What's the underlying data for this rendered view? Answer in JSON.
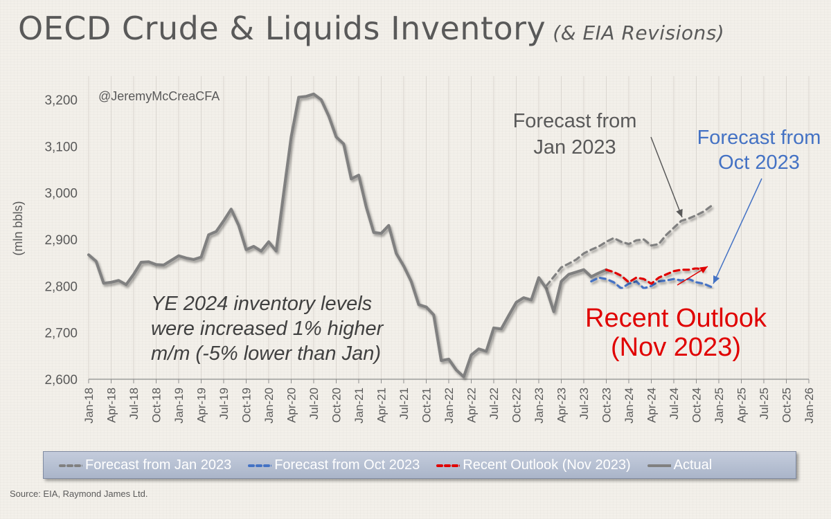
{
  "title": "OECD Crude & Liquids Inventory",
  "subtitle": "(& EIA Revisions)",
  "watermark": "@JeremyMcCreaCFA",
  "source": "Source: EIA, Raymond James Ltd.",
  "colors": {
    "actual": "#808080",
    "forecast_jan": "#808080",
    "forecast_oct": "#4472c4",
    "recent": "#e00000",
    "annotation_text": "#595959",
    "axis_text": "#595959"
  },
  "annotations": {
    "forecast_jan": [
      "Forecast from",
      "Jan 2023"
    ],
    "forecast_oct": [
      "Forecast from",
      "Oct 2023"
    ],
    "recent": [
      "Recent Outlook",
      "(Nov 2023)"
    ],
    "note": [
      "YE 2024 inventory levels",
      "were increased 1% higher",
      "m/m (-5% lower than Jan)"
    ]
  },
  "chart_data": {
    "type": "line",
    "ylabel": "(mln bbls)",
    "ylim": [
      2600,
      3200
    ],
    "yticks": [
      2600,
      2700,
      2800,
      2900,
      3000,
      3100,
      3200
    ],
    "ytick_labels": [
      "2,600",
      "2,700",
      "2,800",
      "2,900",
      "3,000",
      "3,100",
      "3,200"
    ],
    "xtick_labels": [
      "Jan-18",
      "Apr-18",
      "Jul-18",
      "Oct-18",
      "Jan-19",
      "Apr-19",
      "Jul-19",
      "Oct-19",
      "Jan-20",
      "Apr-20",
      "Jul-20",
      "Oct-20",
      "Jan-21",
      "Apr-21",
      "Jul-21",
      "Oct-21",
      "Jan-22",
      "Apr-22",
      "Jul-22",
      "Oct-22",
      "Jan-23",
      "Apr-23",
      "Jul-23",
      "Oct-23",
      "Jan-24",
      "Apr-24",
      "Jul-24",
      "Oct-24",
      "Jan-25",
      "Apr-25",
      "Jul-25",
      "Oct-25",
      "Jan-26"
    ],
    "grid": "vertical",
    "legend_position": "bottom",
    "series": [
      {
        "name": "Actual",
        "style": "solid",
        "x": [
          "2018-01",
          "2018-02",
          "2018-03",
          "2018-04",
          "2018-05",
          "2018-06",
          "2018-07",
          "2018-08",
          "2018-09",
          "2018-10",
          "2018-11",
          "2018-12",
          "2019-01",
          "2019-02",
          "2019-03",
          "2019-04",
          "2019-05",
          "2019-06",
          "2019-07",
          "2019-08",
          "2019-09",
          "2019-10",
          "2019-11",
          "2019-12",
          "2020-01",
          "2020-02",
          "2020-03",
          "2020-04",
          "2020-05",
          "2020-06",
          "2020-07",
          "2020-08",
          "2020-09",
          "2020-10",
          "2020-11",
          "2020-12",
          "2021-01",
          "2021-02",
          "2021-03",
          "2021-04",
          "2021-05",
          "2021-06",
          "2021-07",
          "2021-08",
          "2021-09",
          "2021-10",
          "2021-11",
          "2021-12",
          "2022-01",
          "2022-02",
          "2022-03",
          "2022-04",
          "2022-05",
          "2022-06",
          "2022-07",
          "2022-08",
          "2022-09",
          "2022-10",
          "2022-11",
          "2022-12",
          "2023-01",
          "2023-02",
          "2023-03",
          "2023-04",
          "2023-05",
          "2023-06",
          "2023-07",
          "2023-08",
          "2023-09",
          "2023-10"
        ],
        "values": [
          2867,
          2853,
          2806,
          2808,
          2812,
          2803,
          2825,
          2851,
          2852,
          2846,
          2845,
          2855,
          2865,
          2860,
          2857,
          2862,
          2910,
          2917,
          2940,
          2965,
          2930,
          2878,
          2885,
          2875,
          2895,
          2875,
          3000,
          3120,
          3205,
          3207,
          3212,
          3200,
          3165,
          3120,
          3105,
          3030,
          3038,
          2970,
          2915,
          2913,
          2930,
          2870,
          2843,
          2810,
          2760,
          2755,
          2738,
          2640,
          2643,
          2620,
          2605,
          2652,
          2665,
          2660,
          2710,
          2708,
          2737,
          2765,
          2775,
          2770,
          2818,
          2795,
          2745,
          2810,
          2825,
          2830,
          2835,
          2820,
          2828,
          2835
        ]
      },
      {
        "name": "Forecast from Jan 2023",
        "style": "dashed",
        "x": [
          "2023-02",
          "2023-03",
          "2023-04",
          "2023-05",
          "2023-06",
          "2023-07",
          "2023-08",
          "2023-09",
          "2023-10",
          "2023-11",
          "2023-12",
          "2024-01",
          "2024-02",
          "2024-03",
          "2024-04",
          "2024-05",
          "2024-06",
          "2024-07",
          "2024-08",
          "2024-09",
          "2024-10",
          "2024-11",
          "2024-12"
        ],
        "values": [
          2800,
          2820,
          2840,
          2848,
          2857,
          2870,
          2878,
          2885,
          2895,
          2903,
          2895,
          2890,
          2898,
          2900,
          2887,
          2890,
          2910,
          2925,
          2940,
          2945,
          2952,
          2960,
          2972
        ]
      },
      {
        "name": "Forecast from Oct 2023",
        "style": "dashed",
        "x": [
          "2023-08",
          "2023-09",
          "2023-10",
          "2023-11",
          "2023-12",
          "2024-01",
          "2024-02",
          "2024-03",
          "2024-04",
          "2024-05",
          "2024-06",
          "2024-07",
          "2024-08",
          "2024-09",
          "2024-10",
          "2024-11",
          "2024-12"
        ],
        "values": [
          2810,
          2818,
          2815,
          2808,
          2795,
          2805,
          2810,
          2795,
          2800,
          2810,
          2812,
          2815,
          2812,
          2815,
          2808,
          2805,
          2798
        ]
      },
      {
        "name": "Recent Outlook (Nov 2023)",
        "style": "dashed",
        "x": [
          "2023-10",
          "2023-11",
          "2023-12",
          "2024-01",
          "2024-02",
          "2024-03",
          "2024-04",
          "2024-05",
          "2024-06",
          "2024-07",
          "2024-08",
          "2024-09",
          "2024-10",
          "2024-11"
        ],
        "values": [
          2835,
          2830,
          2822,
          2808,
          2818,
          2815,
          2805,
          2818,
          2825,
          2832,
          2835,
          2835,
          2838,
          2835
        ]
      }
    ]
  }
}
